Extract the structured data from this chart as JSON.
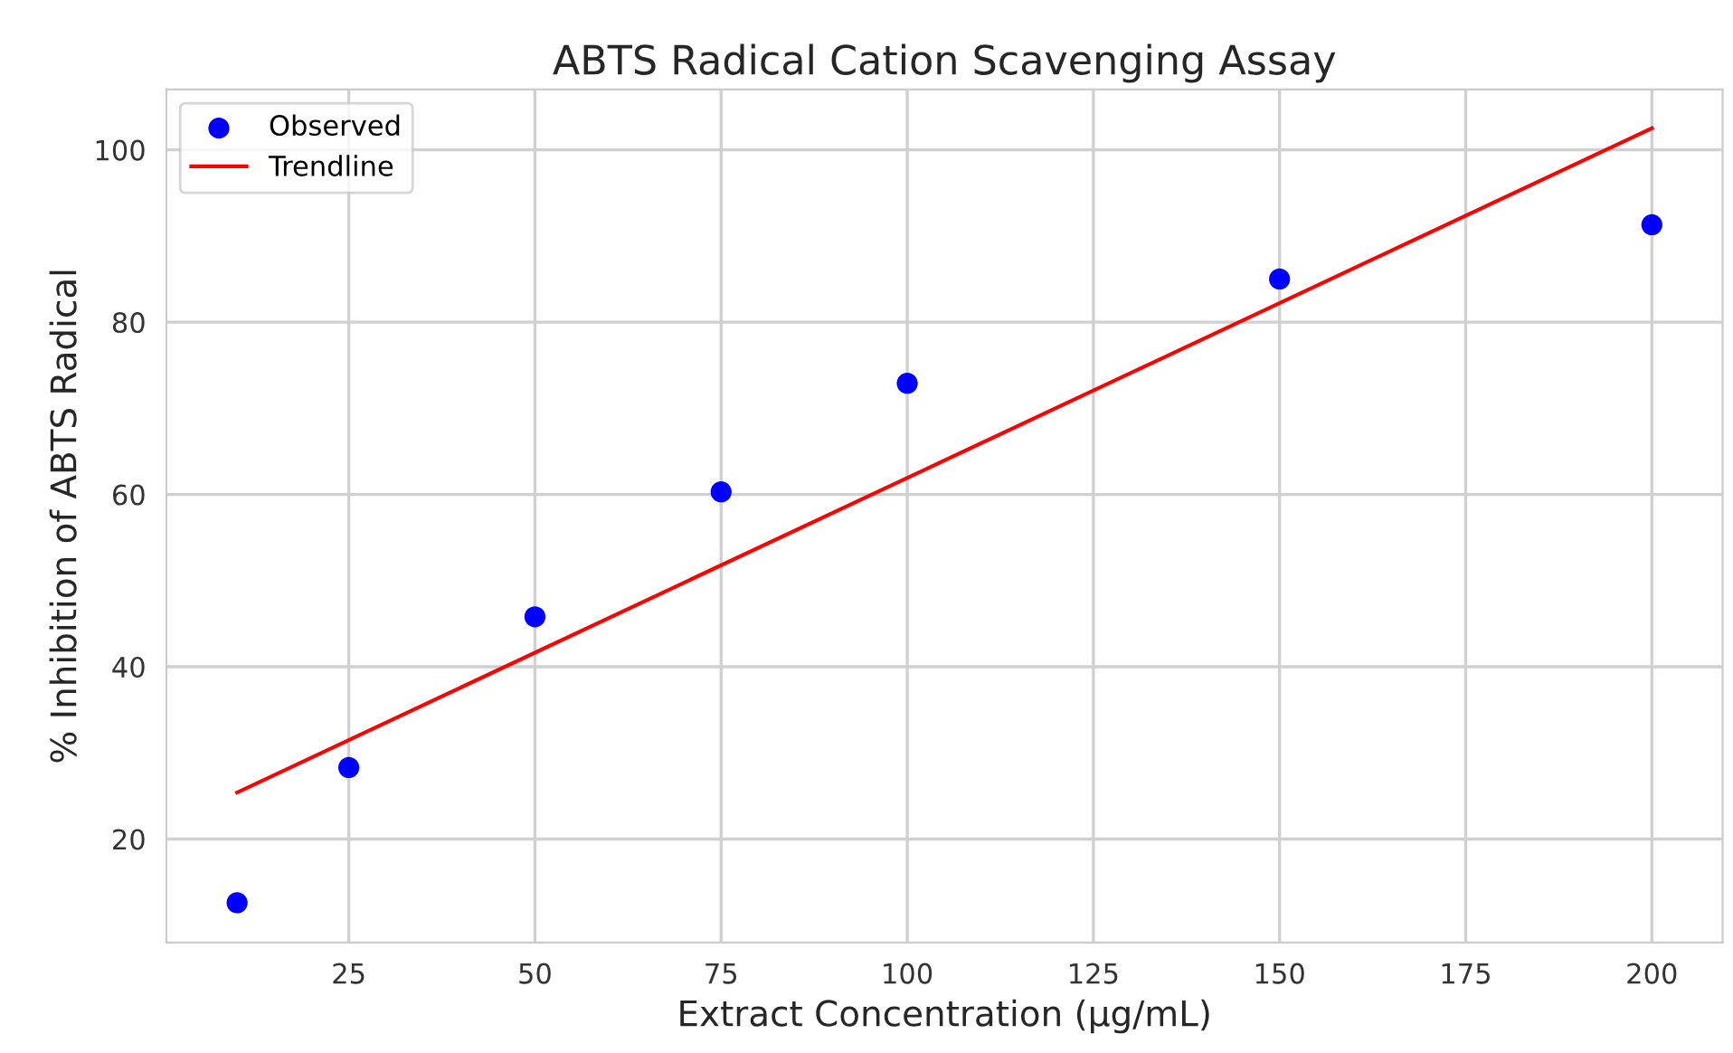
{
  "chart_data": {
    "type": "scatter",
    "title": "ABTS Radical Cation Scavenging Assay",
    "xlabel": "Extract Concentration (µg/mL)",
    "ylabel": "% Inhibition of ABTS Radical",
    "x": [
      10,
      25,
      50,
      75,
      100,
      150,
      200
    ],
    "series": [
      {
        "name": "Observed",
        "color": "#0000ff",
        "marker": "circle",
        "values": [
          12.6,
          28.3,
          45.8,
          60.3,
          72.9,
          85.0,
          91.3
        ]
      },
      {
        "name": "Trendline",
        "type": "line",
        "color": "#ff0000",
        "marker": "none",
        "line_style": "solid",
        "x": [
          10,
          200
        ],
        "values": [
          25.4,
          102.5
        ]
      }
    ],
    "xlim": [
      0.5,
      209.5
    ],
    "ylim": [
      8.0,
      107.0
    ],
    "xticks": [
      25,
      50,
      75,
      100,
      125,
      150,
      175,
      200
    ],
    "yticks": [
      20,
      40,
      60,
      80,
      100
    ],
    "grid": true,
    "legend": "top left"
  }
}
